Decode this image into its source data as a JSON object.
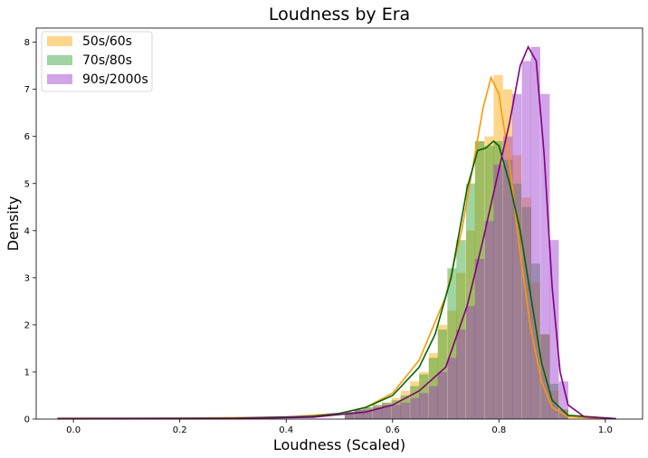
{
  "chart_data": {
    "type": "histogram",
    "title": "Loudness by Era",
    "xlabel": "Loudness (Scaled)",
    "ylabel": "Density",
    "xlim": [
      -0.07,
      1.07
    ],
    "ylim": [
      0,
      8.3
    ],
    "x_ticks": [
      0.0,
      0.2,
      0.4,
      0.6,
      0.8,
      1.0
    ],
    "x_tick_labels": [
      "0.0",
      "0.2",
      "0.4",
      "0.6",
      "0.8",
      "1.0"
    ],
    "y_ticks": [
      0,
      1,
      2,
      3,
      4,
      5,
      6,
      7,
      8
    ],
    "y_tick_labels": [
      "0",
      "1",
      "2",
      "3",
      "4",
      "5",
      "6",
      "7",
      "8"
    ],
    "legend_position": "top-left",
    "bin_width": 0.0175,
    "series": [
      {
        "name": "50s/60s",
        "color": "#ffa500",
        "kde_color": "#ff9900",
        "bins": [
          [
            0.51,
            0.15
          ],
          [
            0.528,
            0.2
          ],
          [
            0.545,
            0.25
          ],
          [
            0.563,
            0.3
          ],
          [
            0.58,
            0.35
          ],
          [
            0.598,
            0.45
          ],
          [
            0.615,
            0.6
          ],
          [
            0.633,
            0.8
          ],
          [
            0.65,
            1.0
          ],
          [
            0.668,
            1.4
          ],
          [
            0.685,
            2.0
          ],
          [
            0.703,
            2.3
          ],
          [
            0.72,
            3.1
          ],
          [
            0.738,
            4.0
          ],
          [
            0.755,
            5.9
          ],
          [
            0.773,
            6.0
          ],
          [
            0.79,
            7.3
          ],
          [
            0.808,
            7.0
          ],
          [
            0.825,
            5.6
          ],
          [
            0.843,
            4.7
          ],
          [
            0.86,
            2.9
          ],
          [
            0.878,
            1.8
          ],
          [
            0.895,
            0.6
          ],
          [
            0.913,
            0.2
          ]
        ],
        "kde": [
          [
            -0.03,
            0.02
          ],
          [
            0.2,
            0.02
          ],
          [
            0.4,
            0.04
          ],
          [
            0.5,
            0.12
          ],
          [
            0.55,
            0.25
          ],
          [
            0.6,
            0.55
          ],
          [
            0.65,
            1.25
          ],
          [
            0.7,
            2.6
          ],
          [
            0.73,
            4.0
          ],
          [
            0.75,
            5.3
          ],
          [
            0.77,
            6.6
          ],
          [
            0.785,
            7.25
          ],
          [
            0.8,
            6.9
          ],
          [
            0.82,
            5.4
          ],
          [
            0.84,
            3.5
          ],
          [
            0.86,
            1.9
          ],
          [
            0.88,
            0.8
          ],
          [
            0.9,
            0.25
          ],
          [
            0.93,
            0.05
          ],
          [
            1.0,
            0.01
          ]
        ]
      },
      {
        "name": "70s/80s",
        "color": "#2ca02c",
        "kde_color": "#006400",
        "bins": [
          [
            0.51,
            0.15
          ],
          [
            0.528,
            0.2
          ],
          [
            0.545,
            0.25
          ],
          [
            0.563,
            0.3
          ],
          [
            0.58,
            0.35
          ],
          [
            0.598,
            0.4
          ],
          [
            0.615,
            0.5
          ],
          [
            0.633,
            0.7
          ],
          [
            0.65,
            0.95
          ],
          [
            0.668,
            1.3
          ],
          [
            0.685,
            1.9
          ],
          [
            0.703,
            3.2
          ],
          [
            0.72,
            3.8
          ],
          [
            0.738,
            5.0
          ],
          [
            0.755,
            5.9
          ],
          [
            0.773,
            5.8
          ],
          [
            0.79,
            5.9
          ],
          [
            0.808,
            5.5
          ],
          [
            0.825,
            5.0
          ],
          [
            0.843,
            4.5
          ],
          [
            0.86,
            3.3
          ],
          [
            0.878,
            1.8
          ],
          [
            0.895,
            0.75
          ],
          [
            0.913,
            0.2
          ]
        ],
        "kde": [
          [
            -0.03,
            0.01
          ],
          [
            0.3,
            0.02
          ],
          [
            0.45,
            0.06
          ],
          [
            0.5,
            0.12
          ],
          [
            0.55,
            0.25
          ],
          [
            0.6,
            0.5
          ],
          [
            0.65,
            1.1
          ],
          [
            0.68,
            1.8
          ],
          [
            0.71,
            3.0
          ],
          [
            0.74,
            4.9
          ],
          [
            0.76,
            5.7
          ],
          [
            0.775,
            5.75
          ],
          [
            0.79,
            5.9
          ],
          [
            0.8,
            5.8
          ],
          [
            0.82,
            5.0
          ],
          [
            0.84,
            4.0
          ],
          [
            0.86,
            2.6
          ],
          [
            0.88,
            1.2
          ],
          [
            0.9,
            0.4
          ],
          [
            0.93,
            0.08
          ],
          [
            1.02,
            0.01
          ]
        ]
      },
      {
        "name": "90s/2000s",
        "color": "#9932cc",
        "kde_color": "#800080",
        "bins": [
          [
            0.51,
            0.15
          ],
          [
            0.528,
            0.2
          ],
          [
            0.545,
            0.2
          ],
          [
            0.563,
            0.25
          ],
          [
            0.58,
            0.3
          ],
          [
            0.598,
            0.3
          ],
          [
            0.615,
            0.35
          ],
          [
            0.633,
            0.45
          ],
          [
            0.65,
            0.55
          ],
          [
            0.668,
            0.7
          ],
          [
            0.685,
            1.0
          ],
          [
            0.703,
            1.3
          ],
          [
            0.72,
            1.9
          ],
          [
            0.738,
            2.4
          ],
          [
            0.755,
            3.4
          ],
          [
            0.773,
            4.2
          ],
          [
            0.79,
            5.4
          ],
          [
            0.808,
            6.0
          ],
          [
            0.825,
            6.9
          ],
          [
            0.843,
            7.6
          ],
          [
            0.86,
            7.9
          ],
          [
            0.878,
            6.9
          ],
          [
            0.895,
            3.8
          ],
          [
            0.913,
            0.8
          ]
        ],
        "kde": [
          [
            -0.03,
            0.01
          ],
          [
            0.3,
            0.01
          ],
          [
            0.45,
            0.04
          ],
          [
            0.55,
            0.15
          ],
          [
            0.6,
            0.3
          ],
          [
            0.65,
            0.6
          ],
          [
            0.7,
            1.1
          ],
          [
            0.74,
            2.4
          ],
          [
            0.77,
            3.8
          ],
          [
            0.8,
            5.3
          ],
          [
            0.82,
            6.3
          ],
          [
            0.84,
            7.5
          ],
          [
            0.855,
            7.9
          ],
          [
            0.87,
            7.6
          ],
          [
            0.885,
            5.6
          ],
          [
            0.9,
            2.8
          ],
          [
            0.915,
            1.0
          ],
          [
            0.93,
            0.3
          ],
          [
            0.96,
            0.05
          ],
          [
            1.02,
            0.01
          ]
        ]
      }
    ]
  }
}
